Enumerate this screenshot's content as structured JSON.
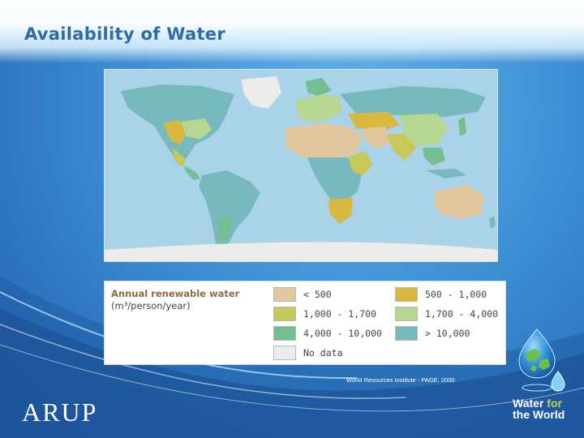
{
  "slide": {
    "title": "Availability of Water",
    "source": "World Resources Institute - PAGE, 2000",
    "brand": "ARUP",
    "logo": {
      "word1": "Water",
      "word2": "for",
      "line2": "the World"
    }
  },
  "legend": {
    "title": "Annual renewable water",
    "unit": "(m³/person/year)",
    "items": [
      {
        "label": "< 500",
        "color": "#e2c79d"
      },
      {
        "label": "500 - 1,000",
        "color": "#d8b93e"
      },
      {
        "label": "1,000 - 1,700",
        "color": "#c6c85a"
      },
      {
        "label": "1,700 - 4,000",
        "color": "#b6d691"
      },
      {
        "label": "4,000 - 10,000",
        "color": "#72bf92"
      },
      {
        "label": "> 10,000",
        "color": "#77b9bd"
      },
      {
        "label": "No data",
        "color": "#ececea"
      }
    ]
  },
  "colors": {
    "background": "#3d8fd4",
    "ocean": "#a9d3e8",
    "title": "#2f6aa9"
  }
}
